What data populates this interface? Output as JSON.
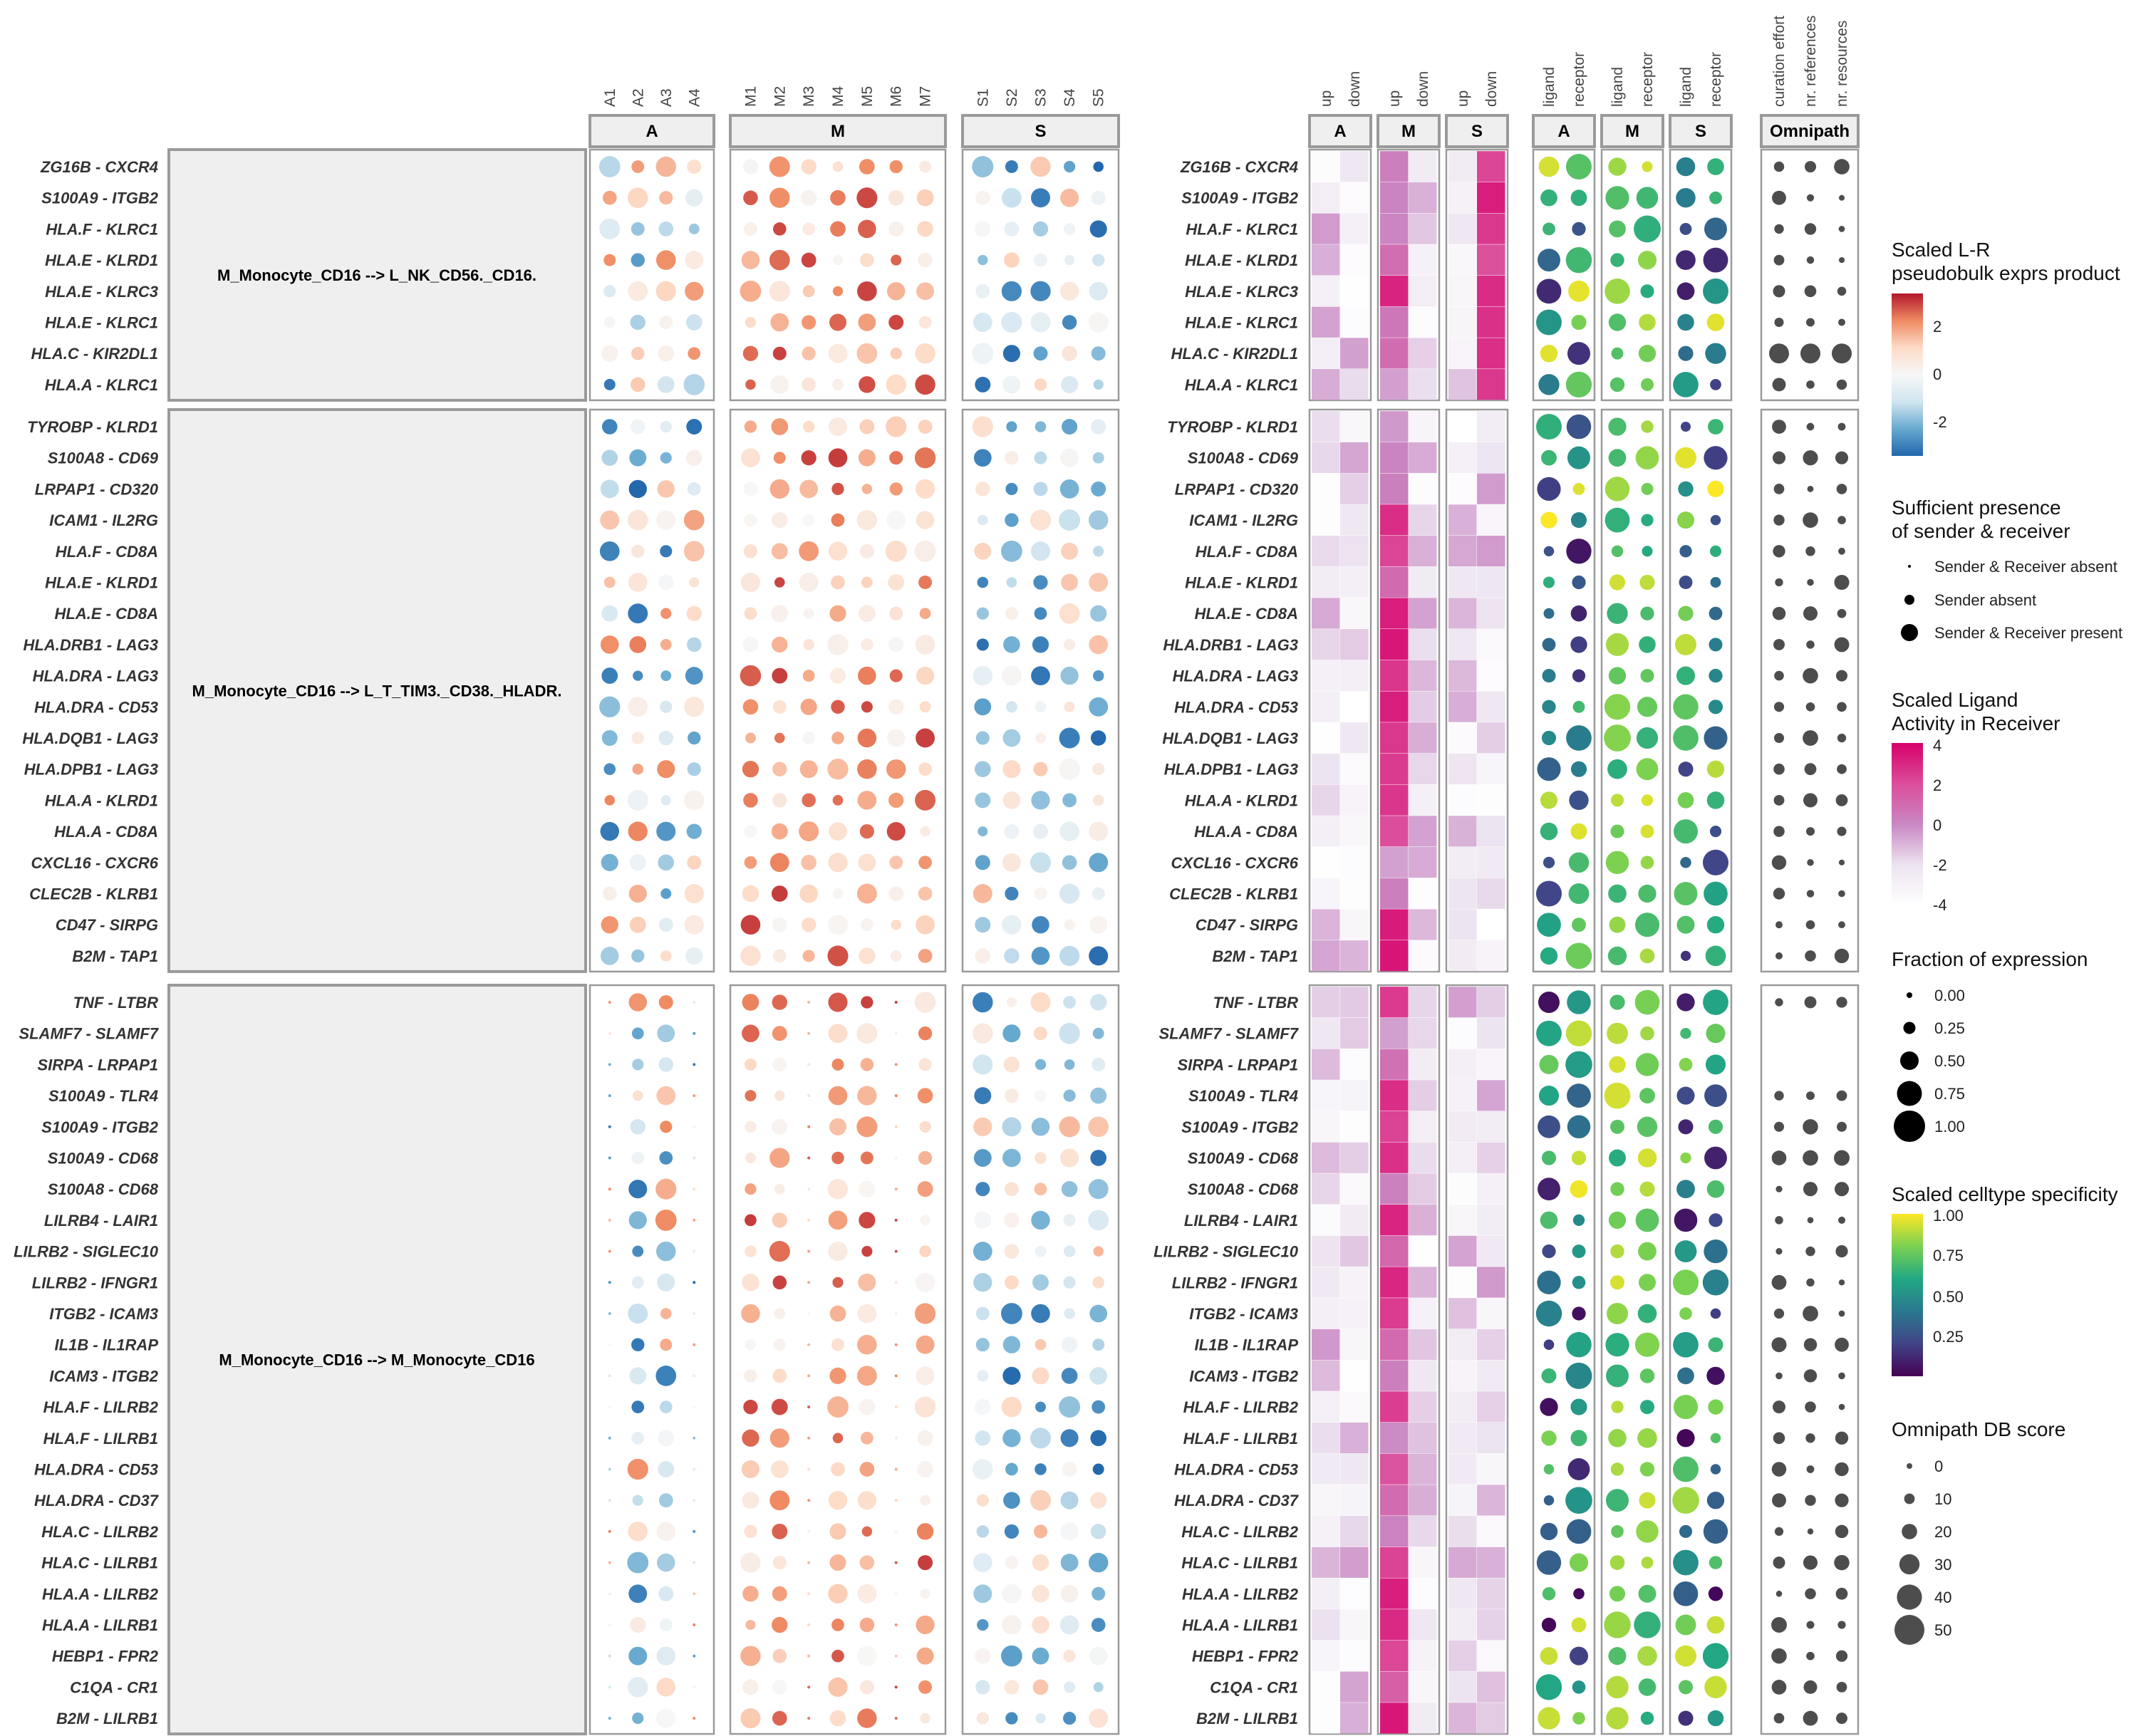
{
  "chart_data": {
    "type": "scatter",
    "description_free": true,
    "groups": [
      {
        "label": "M_Monocyte_CD16 --> L_NK_CD56._CD16.",
        "rows": [
          "ZG16B - CXCR4",
          "S100A9 - ITGB2",
          "HLA.F - KLRC1",
          "HLA.E - KLRD1",
          "HLA.E - KLRC3",
          "HLA.E - KLRC1",
          "HLA.C - KIR2DL1",
          "HLA.A - KLRC1"
        ]
      },
      {
        "label": "M_Monocyte_CD16 --> L_T_TIM3._CD38._HLADR.",
        "rows": [
          "TYROBP - KLRD1",
          "S100A8 - CD69",
          "LRPAP1 - CD320",
          "ICAM1 - IL2RG",
          "HLA.F - CD8A",
          "HLA.E - KLRD1",
          "HLA.E - CD8A",
          "HLA.DRB1 - LAG3",
          "HLA.DRA - LAG3",
          "HLA.DRA - CD53",
          "HLA.DQB1 - LAG3",
          "HLA.DPB1 - LAG3",
          "HLA.A - KLRD1",
          "HLA.A - CD8A",
          "CXCL16 - CXCR6",
          "CLEC2B - KLRB1",
          "CD47 - SIRPG",
          "B2M - TAP1"
        ]
      },
      {
        "label": "M_Monocyte_CD16 --> M_Monocyte_CD16",
        "rows": [
          "TNF - LTBR",
          "SLAMF7 - SLAMF7",
          "SIRPA - LRPAP1",
          "S100A9 - TLR4",
          "S100A9 - ITGB2",
          "S100A9 - CD68",
          "S100A8 - CD68",
          "LILRB4 - LAIR1",
          "LILRB2 - SIGLEC10",
          "LILRB2 - IFNGR1",
          "ITGB2 - ICAM3",
          "IL1B - IL1RAP",
          "ICAM3 - ITGB2",
          "HLA.F - LILRB2",
          "HLA.F - LILRB1",
          "HLA.DRA - CD53",
          "HLA.DRA - CD37",
          "HLA.C - LILRB2",
          "HLA.C - LILRB1",
          "HLA.A - LILRB2",
          "HLA.A - LILRB1",
          "HEBP1 - FPR2",
          "C1QA - CR1",
          "B2M - LILRB1"
        ]
      }
    ],
    "expression_panels": [
      {
        "header": "A",
        "columns": [
          "A1",
          "A2",
          "A3",
          "A4"
        ]
      },
      {
        "header": "M",
        "columns": [
          "M1",
          "M2",
          "M3",
          "M4",
          "M5",
          "M6",
          "M7"
        ]
      },
      {
        "header": "S",
        "columns": [
          "S1",
          "S2",
          "S3",
          "S4",
          "S5"
        ]
      }
    ],
    "activity_panels": [
      {
        "header": "A",
        "columns": [
          "up",
          "down"
        ]
      },
      {
        "header": "M",
        "columns": [
          "up",
          "down"
        ]
      },
      {
        "header": "S",
        "columns": [
          "up",
          "down"
        ]
      }
    ],
    "specificity_panels": [
      {
        "header": "A",
        "columns": [
          "ligand",
          "receptor"
        ]
      },
      {
        "header": "M",
        "columns": [
          "ligand",
          "receptor"
        ]
      },
      {
        "header": "S",
        "columns": [
          "ligand",
          "receptor"
        ]
      }
    ],
    "db_panel": {
      "header": "Omnipath",
      "columns": [
        "curation effort",
        "nr. references",
        "nr. resources"
      ]
    },
    "legends": {
      "lr_product": {
        "title_line1": "Scaled L-R",
        "title_line2": "pseudobulk exprs product",
        "ticks": [
          "2",
          "0",
          "-2"
        ],
        "colors": [
          "#b2182b",
          "#ef8a62",
          "#fddbc7",
          "#f7f7f7",
          "#d1e5f0",
          "#67a9cf",
          "#2166ac"
        ]
      },
      "presence": {
        "title_line1": "Sufficient presence",
        "title_line2": "of sender & receiver",
        "items": [
          "Sender & Receiver absent",
          "Sender absent",
          "Sender & Receiver present"
        ]
      },
      "activity": {
        "title_line1": "Scaled Ligand",
        "title_line2": "Activity in Receiver",
        "ticks": [
          "4",
          "2",
          "0",
          "-2",
          "-4"
        ],
        "colors": [
          "#d6006a",
          "#dc4d9a",
          "#c987c3",
          "#ece3f0",
          "#ffffff"
        ]
      },
      "fraction": {
        "title": "Fraction of expression",
        "items": [
          "0.00",
          "0.25",
          "0.50",
          "0.75",
          "1.00"
        ]
      },
      "specificity": {
        "title": "Scaled celltype specificity",
        "ticks": [
          "1.00",
          "0.75",
          "0.50",
          "0.25"
        ],
        "colors": [
          "#fde725",
          "#7ad151",
          "#22a884",
          "#2a788e",
          "#414487",
          "#440154"
        ]
      },
      "omnipath": {
        "title": "Omnipath DB score",
        "items": [
          "0",
          "10",
          "20",
          "30",
          "40",
          "50"
        ]
      }
    },
    "colors": {
      "panel_border": "#9a9a9a",
      "panel_header_bg": "#efefef",
      "row_label": "#333333",
      "db_dot": "#4d4d4d"
    }
  }
}
